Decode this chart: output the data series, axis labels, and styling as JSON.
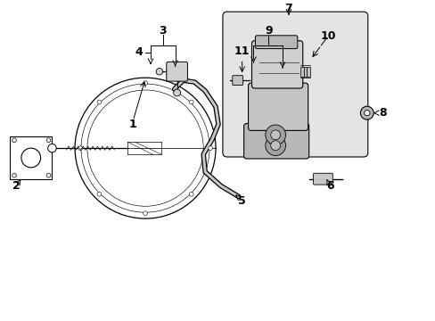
{
  "bg_color": "#ffffff",
  "line_color": "#000000",
  "figsize": [
    4.89,
    3.6
  ],
  "dpi": 100,
  "xlim": [
    0,
    4.89
  ],
  "ylim": [
    0,
    3.6
  ]
}
